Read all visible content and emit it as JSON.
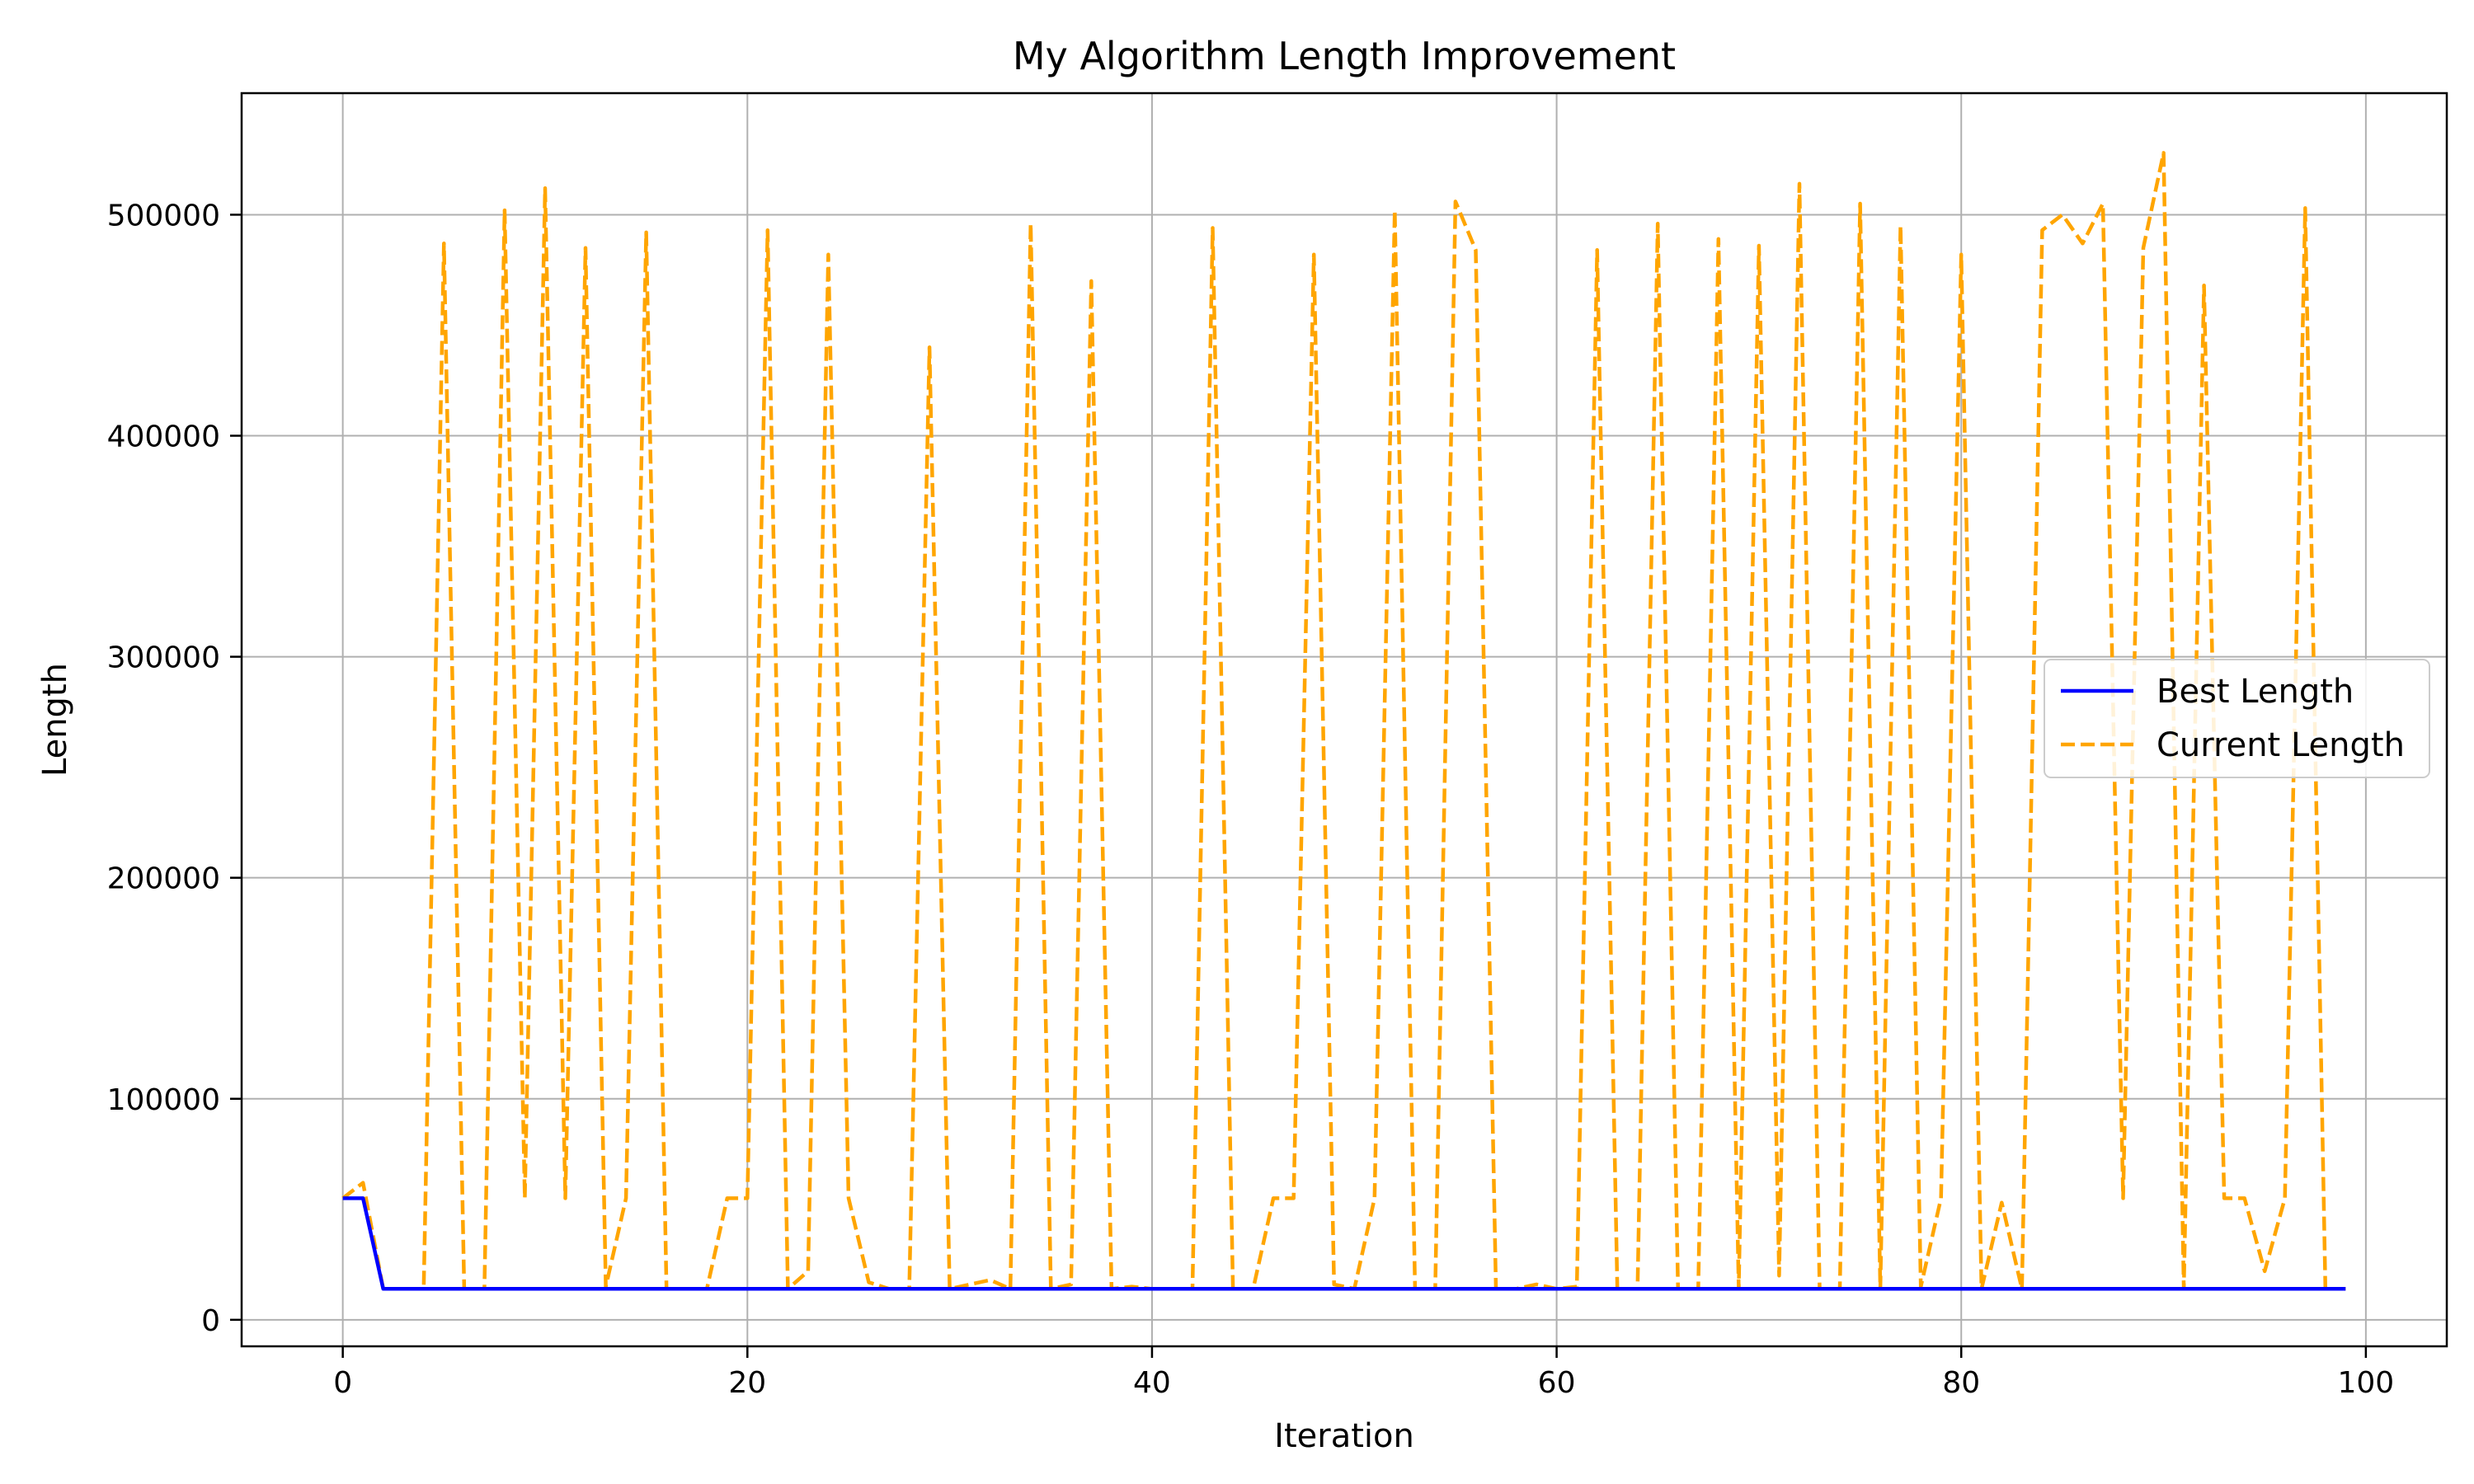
{
  "chart_data": {
    "type": "line",
    "title": "My Algorithm Length Improvement",
    "xlabel": "Iteration",
    "ylabel": "Length",
    "xlim": [
      -5,
      104
    ],
    "ylim": [
      -12000,
      555000
    ],
    "xticks": [
      0,
      20,
      40,
      60,
      80,
      100
    ],
    "yticks": [
      0,
      100000,
      200000,
      300000,
      400000,
      500000
    ],
    "xtick_labels": [
      "0",
      "20",
      "40",
      "60",
      "80",
      "100"
    ],
    "ytick_labels": [
      "0",
      "100000",
      "200000",
      "300000",
      "400000",
      "500000"
    ],
    "grid": true,
    "legend_position": "right",
    "x": [
      0,
      1,
      2,
      3,
      4,
      5,
      6,
      7,
      8,
      9,
      10,
      11,
      12,
      13,
      14,
      15,
      16,
      17,
      18,
      19,
      20,
      21,
      22,
      23,
      24,
      25,
      26,
      27,
      28,
      29,
      30,
      31,
      32,
      33,
      34,
      35,
      36,
      37,
      38,
      39,
      40,
      41,
      42,
      43,
      44,
      45,
      46,
      47,
      48,
      49,
      50,
      51,
      52,
      53,
      54,
      55,
      56,
      57,
      58,
      59,
      60,
      61,
      62,
      63,
      64,
      65,
      66,
      67,
      68,
      69,
      70,
      71,
      72,
      73,
      74,
      75,
      76,
      77,
      78,
      79,
      80,
      81,
      82,
      83,
      84,
      85,
      86,
      87,
      88,
      89,
      90,
      91,
      92,
      93,
      94,
      95,
      96,
      97,
      98,
      99
    ],
    "series": [
      {
        "name": "Best Length",
        "color": "#0000ff",
        "style": "solid",
        "values": [
          55000,
          55000,
          14000,
          14000,
          14000,
          14000,
          14000,
          14000,
          14000,
          14000,
          14000,
          14000,
          14000,
          14000,
          14000,
          14000,
          14000,
          14000,
          14000,
          14000,
          14000,
          14000,
          14000,
          14000,
          14000,
          14000,
          14000,
          14000,
          14000,
          14000,
          14000,
          14000,
          14000,
          14000,
          14000,
          14000,
          14000,
          14000,
          14000,
          14000,
          14000,
          14000,
          14000,
          14000,
          14000,
          14000,
          14000,
          14000,
          14000,
          14000,
          14000,
          14000,
          14000,
          14000,
          14000,
          14000,
          14000,
          14000,
          14000,
          14000,
          14000,
          14000,
          14000,
          14000,
          14000,
          14000,
          14000,
          14000,
          14000,
          14000,
          14000,
          14000,
          14000,
          14000,
          14000,
          14000,
          14000,
          14000,
          14000,
          14000,
          14000,
          14000,
          14000,
          14000,
          14000,
          14000,
          14000,
          14000,
          14000,
          14000,
          14000,
          14000,
          14000,
          14000,
          14000,
          14000,
          14000,
          14000,
          14000,
          14000
        ]
      },
      {
        "name": "Current Length",
        "color": "#ffa500",
        "style": "dashed",
        "values": [
          55000,
          62000,
          14000,
          14000,
          14000,
          487000,
          14000,
          14000,
          502000,
          55000,
          512000,
          55000,
          485000,
          15000,
          55000,
          492000,
          14000,
          14000,
          14000,
          55000,
          55000,
          493000,
          14000,
          22000,
          482000,
          55000,
          17000,
          14000,
          14000,
          440000,
          14000,
          16000,
          18000,
          14000,
          496000,
          14000,
          16000,
          470000,
          14000,
          15000,
          14000,
          14000,
          14000,
          494000,
          14000,
          14000,
          55000,
          55000,
          482000,
          16000,
          14000,
          55000,
          502000,
          14000,
          14000,
          506000,
          484000,
          14000,
          14000,
          16000,
          14000,
          15000,
          484000,
          14000,
          14000,
          496000,
          14000,
          14000,
          489000,
          14000,
          486000,
          20000,
          514000,
          14000,
          14000,
          505000,
          14000,
          495000,
          15000,
          55000,
          482000,
          14000,
          53000,
          14000,
          493000,
          500000,
          487000,
          505000,
          55000,
          485000,
          528000,
          14000,
          468000,
          55000,
          55000,
          22000,
          55000,
          503000,
          14000,
          14000
        ]
      }
    ]
  }
}
